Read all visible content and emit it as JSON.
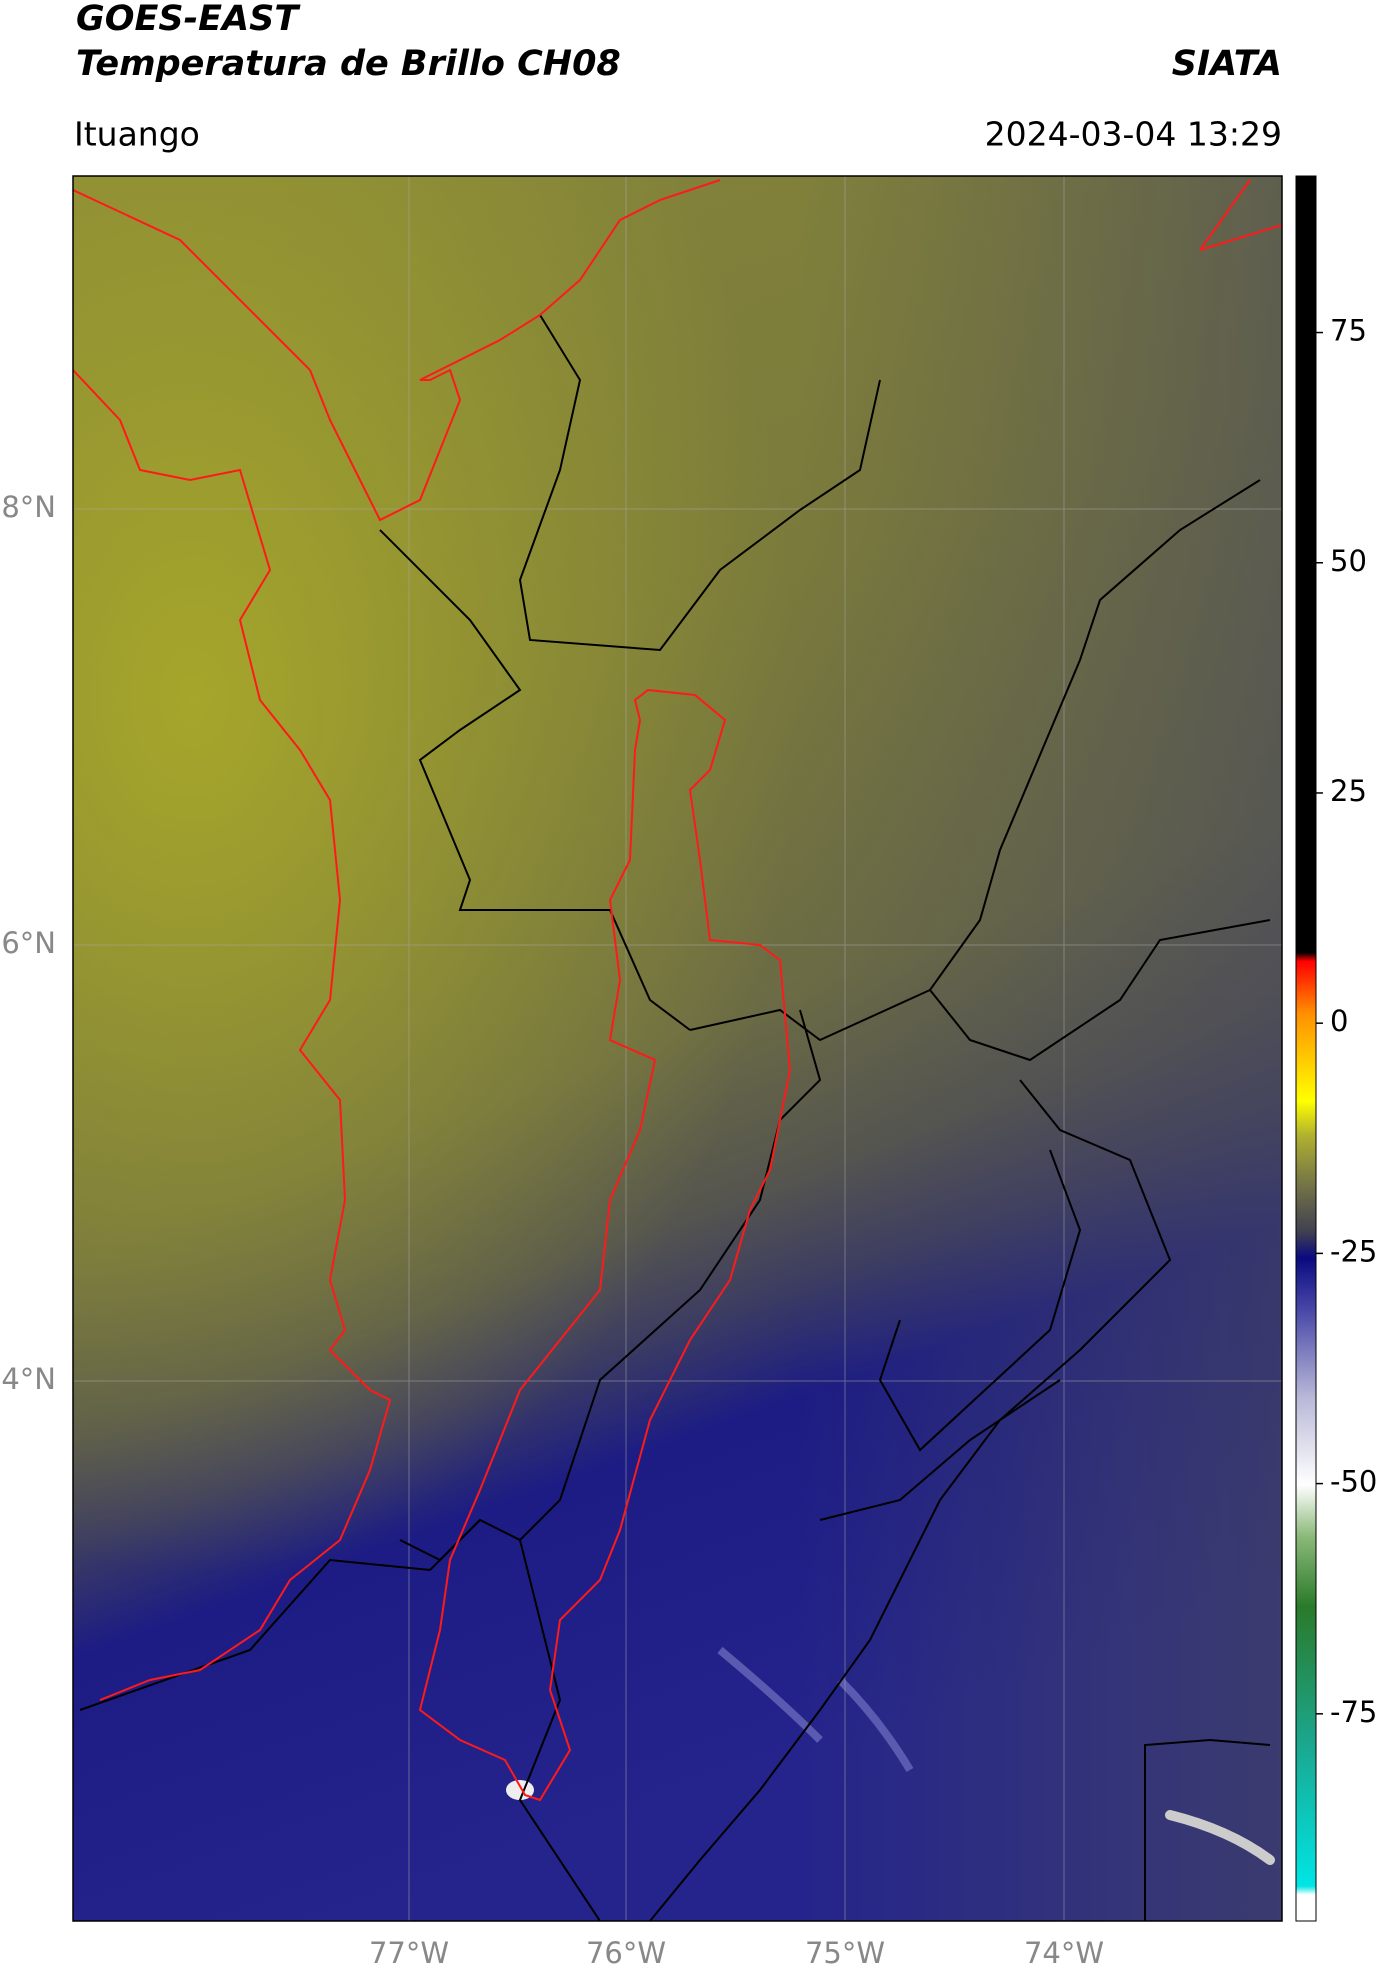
{
  "header": {
    "title": "GOES-EAST",
    "subtitle": "Temperatura de Brillo CH08",
    "source": "SIATA",
    "location": "Ituango",
    "datetime": "2024-03-04 13:29"
  },
  "map": {
    "lat_ticks": [
      "8°N",
      "6°N",
      "4°N"
    ],
    "lon_ticks": [
      "77°W",
      "76°W",
      "75°W",
      "74°W"
    ]
  },
  "colorbar": {
    "range": [
      -97.5,
      92
    ],
    "ticks": [
      75,
      50,
      25,
      0,
      -25,
      -50,
      -75
    ]
  }
}
